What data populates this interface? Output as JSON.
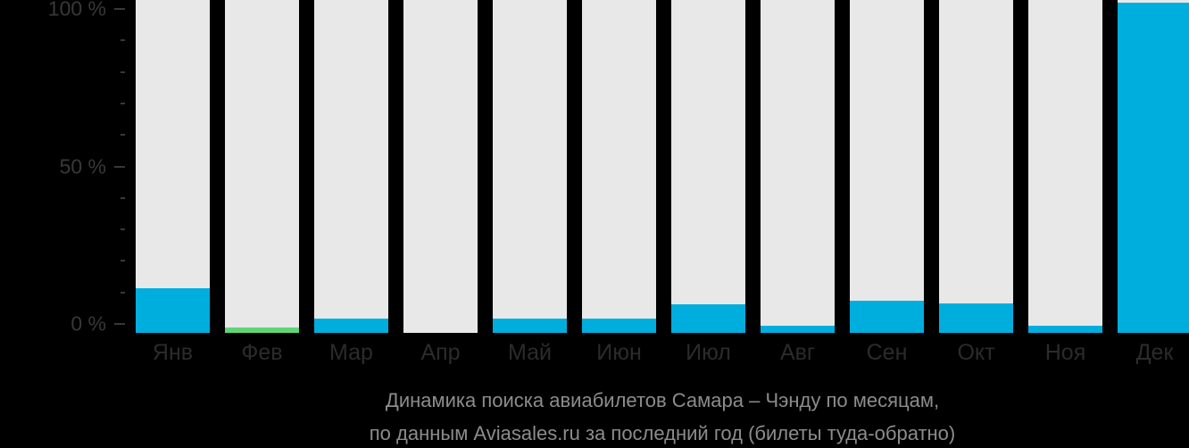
{
  "chart_data": {
    "type": "bar",
    "title": "Динамика поиска авиабилетов Самара – Чэнду по месяцам,",
    "subtitle": "по данным Aviasales.ru за последний год (билеты туда-обратно)",
    "categories": [
      "Янв",
      "Фев",
      "Мар",
      "Апр",
      "Май",
      "Июн",
      "Июл",
      "Авг",
      "Сен",
      "Окт",
      "Ноя",
      "Дек"
    ],
    "values": [
      13.6,
      1.6,
      4.3,
      0,
      4.3,
      4.4,
      8.7,
      2.1,
      9.7,
      8.9,
      2.1,
      100
    ],
    "unit": "%",
    "ylim": [
      0,
      100
    ],
    "ytick_labels": [
      "100 %",
      "50 %",
      "0 %"
    ],
    "minor_ticks_per_interval": 4,
    "grid": false,
    "legend": null,
    "highlight_index": 1,
    "colors": {
      "background": "#000000",
      "bar_track": "#e8e8e8",
      "bar_value": "#00aede",
      "bar_highlight": "#5fd674",
      "axis_text": "#383838",
      "tick_mark": "#383838",
      "month_text": "#2b2b2b",
      "title_text": "#8c8c8c"
    }
  }
}
